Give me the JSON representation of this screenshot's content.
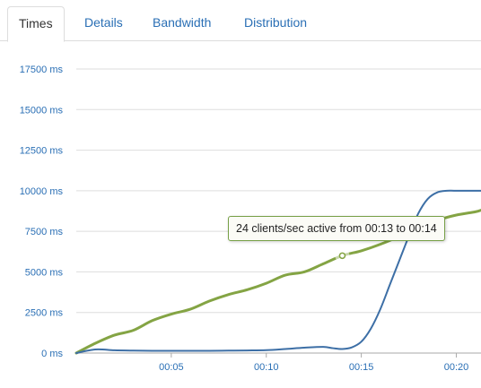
{
  "tabs": [
    {
      "label": "Times",
      "active": true
    },
    {
      "label": "Details",
      "active": false
    },
    {
      "label": "Bandwidth",
      "active": false
    },
    {
      "label": "Distribution",
      "active": false
    }
  ],
  "tooltip": {
    "text": "24 clients/sec active from 00:13 to 00:14"
  },
  "colors": {
    "active_clients": "#84a444",
    "response_time": "#3d6fa6",
    "grid": "#dddddd",
    "tick_text": "#2a6fb5"
  },
  "chart_data": {
    "type": "line",
    "title": "",
    "xlabel": "",
    "ylabel": "",
    "ylim": [
      0,
      17500
    ],
    "xlim": [
      0,
      21.3
    ],
    "y_ticks": [
      {
        "value": 0,
        "label": "0 ms"
      },
      {
        "value": 2500,
        "label": "2500 ms"
      },
      {
        "value": 5000,
        "label": "5000 ms"
      },
      {
        "value": 7500,
        "label": "7500 ms"
      },
      {
        "value": 10000,
        "label": "10000 ms"
      },
      {
        "value": 12500,
        "label": "12500 ms"
      },
      {
        "value": 15000,
        "label": "15000 ms"
      },
      {
        "value": 17500,
        "label": "17500 ms"
      }
    ],
    "x_ticks": [
      {
        "value": 5,
        "label": "00:05"
      },
      {
        "value": 10,
        "label": "00:10"
      },
      {
        "value": 15,
        "label": "00:15"
      },
      {
        "value": 20,
        "label": "00:20"
      }
    ],
    "grid": true,
    "legend": "none",
    "series": [
      {
        "color": "#84a444",
        "x": [
          0,
          1,
          2,
          3,
          4,
          5,
          6,
          7,
          8,
          9,
          10,
          11,
          12,
          13,
          14,
          15,
          16,
          17,
          18,
          19,
          20,
          21,
          21.3
        ],
        "values": [
          0,
          600,
          1100,
          1400,
          2000,
          2400,
          2700,
          3200,
          3600,
          3900,
          4300,
          4800,
          5000,
          5500,
          6000,
          6300,
          6700,
          7200,
          7900,
          8200,
          8500,
          8700,
          8800
        ]
      },
      {
        "color": "#3d6fa6",
        "x": [
          0,
          1,
          2,
          3,
          4,
          5,
          6,
          7,
          8,
          9,
          10,
          11,
          12,
          13,
          13.5,
          14,
          14.5,
          15,
          15.5,
          16,
          16.5,
          17,
          17.5,
          18,
          18.5,
          19,
          19.5,
          20,
          21.3
        ],
        "values": [
          0,
          220,
          170,
          150,
          140,
          140,
          140,
          140,
          150,
          160,
          180,
          250,
          330,
          380,
          300,
          250,
          350,
          700,
          1500,
          2700,
          4200,
          5700,
          7200,
          8600,
          9500,
          9900,
          10000,
          10000,
          10000
        ]
      }
    ],
    "highlight": {
      "x": 14,
      "value": 6000
    }
  }
}
